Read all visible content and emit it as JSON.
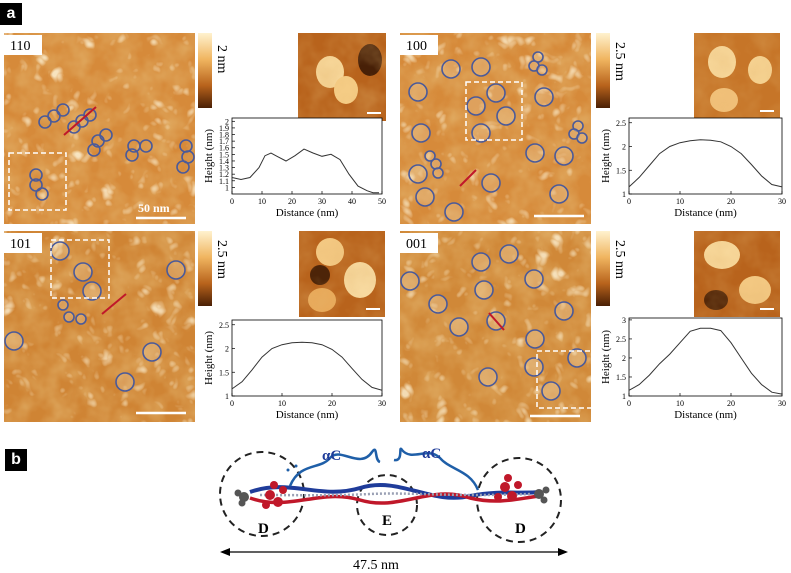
{
  "panel_a": {
    "tag": "a",
    "subpanels": [
      {
        "id": "110",
        "label": "110",
        "scale_text": "2 nm",
        "scalebar_label": "50 nm",
        "xlabel": "Distance (nm)",
        "ylabel": "Height (nm)",
        "yticks": [
          "1",
          "1.1",
          "1.2",
          "1.3",
          "1.4",
          "1.5",
          "1.6",
          "1.7",
          "1.8",
          "1.9",
          "2"
        ],
        "xticks": [
          "0",
          "10",
          "20",
          "30",
          "40",
          "50"
        ]
      },
      {
        "id": "100",
        "label": "100",
        "scale_text": "2.5 nm",
        "xlabel": "Distance (nm)",
        "ylabel": "Height (nm)",
        "yticks": [
          "1",
          "1.5",
          "2",
          "2.5"
        ],
        "xticks": [
          "0",
          "10",
          "20",
          "30"
        ]
      },
      {
        "id": "101",
        "label": "101",
        "scale_text": "2.5 nm",
        "xlabel": "Distance (nm)",
        "ylabel": "Height (nm)",
        "yticks": [
          "1",
          "1.5",
          "2",
          "2.5"
        ],
        "xticks": [
          "0",
          "10",
          "20",
          "30"
        ]
      },
      {
        "id": "001",
        "label": "001",
        "scale_text": "2.5 nm",
        "xlabel": "Distance (nm)",
        "ylabel": "Height (nm)",
        "yticks": [
          "1",
          "1.5",
          "2",
          "2.5",
          "3"
        ],
        "xticks": [
          "0",
          "10",
          "20",
          "30"
        ]
      }
    ]
  },
  "panel_b": {
    "tag": "b",
    "labels": {
      "alpha_left": "αC",
      "alpha_right": "αC",
      "d_left": "D",
      "e_mid": "E",
      "d_right": "D"
    },
    "length_label": "47.5 nm"
  },
  "colors": {
    "afm_dark": "#5a2a08",
    "afm_mid": "#c8782a",
    "afm_light": "#fbe6b5",
    "circle": "#4a5a9a",
    "red_line": "#c0182a",
    "fibrinogen_blue": "#1f3c9a",
    "fibrinogen_red": "#c0182a"
  },
  "chart_data": [
    {
      "type": "line",
      "name": "110",
      "xlabel": "Distance (nm)",
      "ylabel": "Height (nm)",
      "xlim": [
        0,
        50
      ],
      "ylim": [
        0.9,
        2.05
      ],
      "x": [
        0,
        3,
        6,
        9,
        11,
        13,
        15,
        18,
        21,
        24,
        27,
        30,
        33,
        36,
        39,
        42,
        45,
        47,
        49
      ],
      "y": [
        1.15,
        1.12,
        1.15,
        1.3,
        1.48,
        1.52,
        1.47,
        1.4,
        1.48,
        1.58,
        1.52,
        1.47,
        1.5,
        1.42,
        1.2,
        1.02,
        0.95,
        0.92,
        0.92
      ]
    },
    {
      "type": "line",
      "name": "100",
      "xlabel": "Distance (nm)",
      "ylabel": "Height (nm)",
      "xlim": [
        0,
        30
      ],
      "ylim": [
        1,
        2.6
      ],
      "x": [
        0,
        2,
        4,
        6,
        8,
        10,
        12,
        14,
        16,
        18,
        20,
        22,
        24,
        26,
        28,
        30
      ],
      "y": [
        1.15,
        1.35,
        1.6,
        1.85,
        2.0,
        2.08,
        2.12,
        2.14,
        2.13,
        2.1,
        2.0,
        1.85,
        1.62,
        1.38,
        1.2,
        1.15
      ]
    },
    {
      "type": "line",
      "name": "101",
      "xlabel": "Distance (nm)",
      "ylabel": "Height (nm)",
      "xlim": [
        0,
        30
      ],
      "ylim": [
        1,
        2.6
      ],
      "x": [
        0,
        2,
        4,
        6,
        8,
        10,
        12,
        14,
        16,
        18,
        20,
        22,
        24,
        26,
        28,
        30
      ],
      "y": [
        1.15,
        1.3,
        1.55,
        1.82,
        2.0,
        2.08,
        2.12,
        2.13,
        2.12,
        2.08,
        1.98,
        1.82,
        1.58,
        1.35,
        1.18,
        1.12
      ]
    },
    {
      "type": "line",
      "name": "001",
      "xlabel": "Distance (nm)",
      "ylabel": "Height (nm)",
      "xlim": [
        0,
        30
      ],
      "ylim": [
        1,
        3.05
      ],
      "x": [
        0,
        2,
        4,
        6,
        8,
        10,
        12,
        14,
        16,
        18,
        20,
        22,
        24,
        26,
        28,
        30
      ],
      "y": [
        1.15,
        1.3,
        1.55,
        1.85,
        2.1,
        2.4,
        2.7,
        2.78,
        2.78,
        2.72,
        2.4,
        2.0,
        1.6,
        1.3,
        1.1,
        1.05
      ]
    }
  ]
}
